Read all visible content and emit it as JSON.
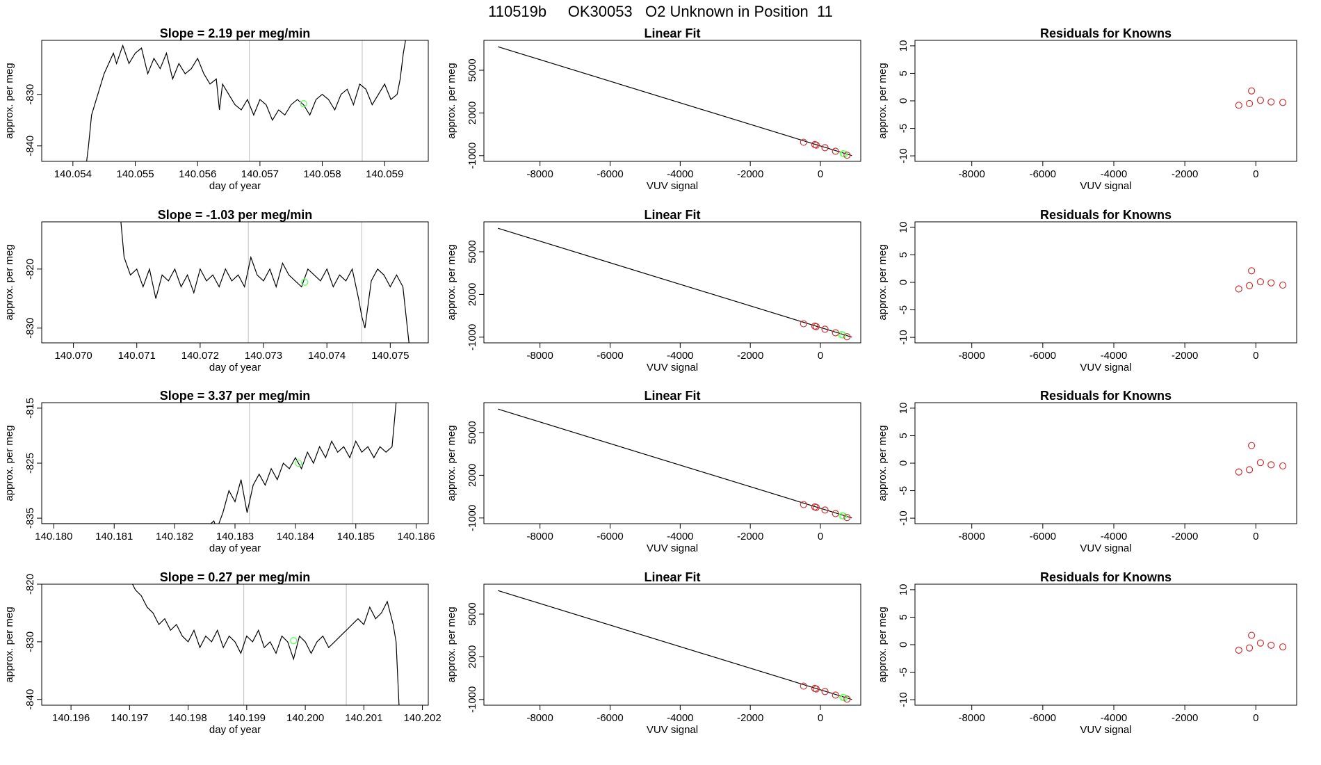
{
  "figure_title": "110519b     OK30053   O2 Unknown in Position  11",
  "colors": {
    "line": "#000000",
    "grid": "#bebebe",
    "known": "#cd3333",
    "unknown": "#66ff66"
  },
  "chart_data": [
    {
      "type": "line",
      "title": "Slope =  2.19  per meg/min",
      "xlabel": "day of year",
      "ylabel": "approx. per meg",
      "xlim": [
        140.0535,
        140.0597
      ],
      "ylim": [
        -843,
        -819.5
      ],
      "xticks": [
        "140.054",
        "140.055",
        "140.056",
        "140.057",
        "140.058",
        "140.059"
      ],
      "yticks": [
        "-840",
        "-830"
      ],
      "vlines": [
        140.05683,
        140.05864
      ],
      "marker": {
        "x": 140.0577,
        "y": -831.8
      },
      "series": [
        {
          "x": [
            140.0542,
            140.05425,
            140.0543,
            140.0545,
            140.05465,
            140.0547,
            140.0548,
            140.0549,
            140.055,
            140.0551,
            140.0552,
            140.0553,
            140.0554,
            140.0555,
            140.0556,
            140.0557,
            140.0558,
            140.0559,
            140.056,
            140.0561,
            140.0562,
            140.0563,
            140.05635,
            140.0564,
            140.0565,
            140.0566,
            140.0567,
            140.0568,
            140.0569,
            140.057,
            140.0571,
            140.0572,
            140.0573,
            140.0574,
            140.0575,
            140.0576,
            140.0577,
            140.0578,
            140.0579,
            140.058,
            140.0581,
            140.0582,
            140.0583,
            140.0584,
            140.0585,
            140.0586,
            140.0587,
            140.0588,
            140.0589,
            140.059,
            140.0591,
            140.0592,
            140.05925,
            140.0593,
            140.0594
          ],
          "y": [
            -845,
            -840,
            -834,
            -826,
            -822,
            -824,
            -820.5,
            -824,
            -822,
            -821,
            -826,
            -823,
            -825,
            -822,
            -827,
            -824,
            -826,
            -825,
            -823,
            -826,
            -828,
            -827,
            -833,
            -828,
            -830,
            -832,
            -833,
            -831,
            -834,
            -831,
            -832,
            -835,
            -833,
            -834,
            -832,
            -831,
            -832,
            -834,
            -831,
            -830,
            -831,
            -833,
            -830,
            -829,
            -832,
            -828,
            -829,
            -832,
            -830,
            -828,
            -831,
            -830,
            -827,
            -822,
            -815
          ]
        }
      ]
    },
    {
      "type": "line",
      "title": "Slope =  -1.03  per meg/min",
      "xlabel": "day of year",
      "ylabel": "approx. per meg",
      "xlim": [
        140.0695,
        140.0756
      ],
      "ylim": [
        -832.5,
        -812
      ],
      "xticks": [
        "140.070",
        "140.071",
        "140.072",
        "140.073",
        "140.074",
        "140.075"
      ],
      "yticks": [
        "-830",
        "-820"
      ],
      "vlines": [
        140.07276,
        140.07455
      ],
      "marker": {
        "x": 140.07365,
        "y": -822.2
      },
      "series": [
        {
          "x": [
            140.0707,
            140.07075,
            140.0708,
            140.0709,
            140.071,
            140.0711,
            140.0712,
            140.0713,
            140.0714,
            140.0715,
            140.0716,
            140.0717,
            140.0718,
            140.0719,
            140.072,
            140.0721,
            140.0722,
            140.0723,
            140.0724,
            140.0725,
            140.0726,
            140.0727,
            140.0728,
            140.0729,
            140.073,
            140.0731,
            140.0732,
            140.0733,
            140.0734,
            140.0735,
            140.0736,
            140.0737,
            140.0738,
            140.0739,
            140.074,
            140.0741,
            140.0742,
            140.0743,
            140.0744,
            140.0745,
            140.07455,
            140.0746,
            140.0747,
            140.0748,
            140.0749,
            140.075,
            140.0751,
            140.0752,
            140.0753
          ],
          "y": [
            -806,
            -812,
            -818,
            -821,
            -820,
            -823,
            -820,
            -825,
            -821,
            -822,
            -820,
            -823,
            -821,
            -824,
            -820,
            -822,
            -821,
            -823,
            -820,
            -822,
            -821,
            -823,
            -818,
            -821,
            -822,
            -820,
            -823,
            -819,
            -821,
            -822,
            -823,
            -820,
            -821,
            -822,
            -820,
            -823,
            -821,
            -822,
            -820,
            -825,
            -828,
            -830,
            -822,
            -820,
            -821,
            -823,
            -821,
            -823,
            -833
          ]
        }
      ]
    },
    {
      "type": "line",
      "title": "Slope =  3.37  per meg/min",
      "xlabel": "day of year",
      "ylabel": "approx. per meg",
      "xlim": [
        140.1798,
        140.1862
      ],
      "ylim": [
        -836,
        -814
      ],
      "xticks": [
        "140.180",
        "140.181",
        "140.182",
        "140.183",
        "140.184",
        "140.185",
        "140.186"
      ],
      "yticks": [
        "-835",
        "-825",
        "-815"
      ],
      "vlines": [
        140.18324,
        140.18495
      ],
      "marker": {
        "x": 140.18405,
        "y": -825
      },
      "series": [
        {
          "x": [
            140.1798,
            140.1826,
            140.18265,
            140.1827,
            140.1828,
            140.1829,
            140.183,
            140.1831,
            140.1832,
            140.1833,
            140.1834,
            140.1835,
            140.1836,
            140.1837,
            140.1838,
            140.1839,
            140.184,
            140.1841,
            140.1842,
            140.1843,
            140.1844,
            140.1845,
            140.1846,
            140.1847,
            140.1848,
            140.1849,
            140.185,
            140.1851,
            140.1852,
            140.1853,
            140.1854,
            140.1855,
            140.1856,
            140.1857
          ],
          "y": [
            -836,
            -836,
            -835.5,
            -837,
            -834,
            -830,
            -832,
            -828,
            -834,
            -829,
            -827,
            -829,
            -826,
            -828,
            -825,
            -826,
            -824,
            -826,
            -823,
            -825,
            -822,
            -824,
            -821,
            -823,
            -822,
            -824,
            -821,
            -823,
            -822,
            -824,
            -822,
            -823,
            -822,
            -810
          ]
        }
      ]
    },
    {
      "type": "line",
      "title": "Slope =  0.27  per meg/min",
      "xlabel": "day of year",
      "ylabel": "approx. per meg",
      "xlim": [
        140.1955,
        140.2021
      ],
      "ylim": [
        -841,
        -820
      ],
      "xticks": [
        "140.196",
        "140.197",
        "140.198",
        "140.199",
        "140.200",
        "140.201",
        "140.202"
      ],
      "yticks": [
        "-840",
        "-830",
        "-820"
      ],
      "vlines": [
        140.19895,
        140.2007
      ],
      "marker": {
        "x": 140.1998,
        "y": -829.8
      },
      "series": [
        {
          "x": [
            140.197,
            140.1971,
            140.1972,
            140.1973,
            140.1974,
            140.1975,
            140.1976,
            140.1977,
            140.1978,
            140.1979,
            140.198,
            140.1981,
            140.1982,
            140.1983,
            140.1984,
            140.1985,
            140.1986,
            140.1987,
            140.1988,
            140.1989,
            140.199,
            140.1991,
            140.1992,
            140.1993,
            140.1994,
            140.1995,
            140.1996,
            140.1997,
            140.1998,
            140.1999,
            140.2,
            140.2001,
            140.2002,
            140.2003,
            140.2004,
            140.2005,
            140.2006,
            140.2007,
            140.2008,
            140.2009,
            140.201,
            140.2011,
            140.2012,
            140.2013,
            140.2014,
            140.2015,
            140.20155,
            140.2016
          ],
          "y": [
            -819,
            -821,
            -822,
            -824,
            -825,
            -827,
            -826,
            -828,
            -827,
            -829,
            -830,
            -828,
            -831,
            -829,
            -830,
            -828,
            -831,
            -829,
            -830,
            -832,
            -829,
            -830,
            -828,
            -831,
            -830,
            -832,
            -829,
            -830,
            -833,
            -829,
            -830,
            -832,
            -830,
            -829,
            -831,
            -830,
            -829,
            -828,
            -827,
            -826,
            -827,
            -824,
            -826,
            -825,
            -823,
            -827,
            -830,
            -841
          ]
        }
      ]
    },
    {
      "type": "scatter",
      "title": "Linear Fit",
      "xlabel": "VUV signal",
      "ylabel": "approx. per meg",
      "xlim": [
        -9600,
        1150
      ],
      "ylim": [
        -1400,
        7100
      ],
      "xticks": [
        "-8000",
        "-6000",
        "-4000",
        "-2000",
        "0"
      ],
      "yticks": [
        "-1000",
        "2000",
        "5000"
      ],
      "fit_line": {
        "x": [
          -9200,
          900
        ],
        "y": [
          6650,
          -1000
        ]
      },
      "knowns": {
        "x": [
          -480,
          -160,
          -120,
          130,
          430,
          760
        ],
        "y": [
          -60,
          -220,
          -260,
          -440,
          -690,
          -970
        ]
      },
      "unknown": {
        "x": [
          650,
          680
        ],
        "y": [
          -860,
          -880
        ]
      }
    },
    {
      "type": "scatter",
      "title": "Linear Fit",
      "xlabel": "VUV signal",
      "ylabel": "approx. per meg",
      "xlim": [
        -9600,
        1150
      ],
      "ylim": [
        -1400,
        7100
      ],
      "xticks": [
        "-8000",
        "-6000",
        "-4000",
        "-2000",
        "0"
      ],
      "yticks": [
        "-1000",
        "2000",
        "5000"
      ],
      "fit_line": {
        "x": [
          -9200,
          900
        ],
        "y": [
          6650,
          -1000
        ]
      },
      "knowns": {
        "x": [
          -480,
          -160,
          -120,
          130,
          430,
          760
        ],
        "y": [
          -60,
          -220,
          -260,
          -440,
          -690,
          -970
        ]
      },
      "unknown": {
        "x": [
          600,
          640
        ],
        "y": [
          -820,
          -850
        ]
      }
    },
    {
      "type": "scatter",
      "title": "Linear Fit",
      "xlabel": "VUV signal",
      "ylabel": "approx. per meg",
      "xlim": [
        -9600,
        1150
      ],
      "ylim": [
        -1400,
        7100
      ],
      "xticks": [
        "-8000",
        "-6000",
        "-4000",
        "-2000",
        "0"
      ],
      "yticks": [
        "-1000",
        "2000",
        "5000"
      ],
      "fit_line": {
        "x": [
          -9200,
          900
        ],
        "y": [
          6650,
          -1000
        ]
      },
      "knowns": {
        "x": [
          -480,
          -160,
          -120,
          130,
          430,
          760
        ],
        "y": [
          -60,
          -220,
          -260,
          -440,
          -690,
          -970
        ]
      },
      "unknown": {
        "x": [
          620,
          660
        ],
        "y": [
          -840,
          -860
        ]
      }
    },
    {
      "type": "scatter",
      "title": "Linear Fit",
      "xlabel": "VUV signal",
      "ylabel": "approx. per meg",
      "xlim": [
        -9600,
        1150
      ],
      "ylim": [
        -1400,
        7100
      ],
      "xticks": [
        "-8000",
        "-6000",
        "-4000",
        "-2000",
        "0"
      ],
      "yticks": [
        "-1000",
        "2000",
        "5000"
      ],
      "fit_line": {
        "x": [
          -9200,
          900
        ],
        "y": [
          6650,
          -1000
        ]
      },
      "knowns": {
        "x": [
          -480,
          -160,
          -120,
          130,
          430,
          760
        ],
        "y": [
          -60,
          -220,
          -260,
          -440,
          -690,
          -970
        ]
      },
      "unknown": {
        "x": [
          640,
          680
        ],
        "y": [
          -850,
          -880
        ]
      }
    },
    {
      "type": "scatter",
      "title": "Residuals for Knowns",
      "xlabel": "VUV signal",
      "ylabel": "approx. per meg",
      "xlim": [
        -9600,
        1150
      ],
      "ylim": [
        -11,
        11
      ],
      "xticks": [
        "-8000",
        "-6000",
        "-4000",
        "-2000",
        "0"
      ],
      "yticks": [
        "-10",
        "-5",
        "0",
        "5",
        "10"
      ],
      "knowns": {
        "x": [
          -480,
          -180,
          -120,
          130,
          430,
          760
        ],
        "y": [
          -0.8,
          -0.5,
          1.8,
          0.1,
          -0.2,
          -0.3
        ]
      }
    },
    {
      "type": "scatter",
      "title": "Residuals for Knowns",
      "xlabel": "VUV signal",
      "ylabel": "approx. per meg",
      "xlim": [
        -9600,
        1150
      ],
      "ylim": [
        -11,
        11
      ],
      "xticks": [
        "-8000",
        "-6000",
        "-4000",
        "-2000",
        "0"
      ],
      "yticks": [
        "-10",
        "-5",
        "0",
        "5",
        "10"
      ],
      "knowns": {
        "x": [
          -480,
          -180,
          -120,
          130,
          430,
          760
        ],
        "y": [
          -1.2,
          -0.6,
          2.1,
          0.1,
          -0.1,
          -0.5
        ]
      }
    },
    {
      "type": "scatter",
      "title": "Residuals for Knowns",
      "xlabel": "VUV signal",
      "ylabel": "approx. per meg",
      "xlim": [
        -9600,
        1150
      ],
      "ylim": [
        -11,
        11
      ],
      "xticks": [
        "-8000",
        "-6000",
        "-4000",
        "-2000",
        "0"
      ],
      "yticks": [
        "-10",
        "-5",
        "0",
        "5",
        "10"
      ],
      "knowns": {
        "x": [
          -480,
          -180,
          -120,
          130,
          430,
          760
        ],
        "y": [
          -1.6,
          -1.2,
          3.2,
          0.1,
          -0.3,
          -0.5
        ]
      }
    },
    {
      "type": "scatter",
      "title": "Residuals for Knowns",
      "xlabel": "VUV signal",
      "ylabel": "approx. per meg",
      "xlim": [
        -9600,
        1150
      ],
      "ylim": [
        -11,
        11
      ],
      "xticks": [
        "-8000",
        "-6000",
        "-4000",
        "-2000",
        "0"
      ],
      "yticks": [
        "-10",
        "-5",
        "0",
        "5",
        "10"
      ],
      "knowns": {
        "x": [
          -480,
          -180,
          -120,
          130,
          430,
          760
        ],
        "y": [
          -1.0,
          -0.6,
          1.7,
          0.3,
          -0.1,
          -0.4
        ]
      }
    }
  ]
}
